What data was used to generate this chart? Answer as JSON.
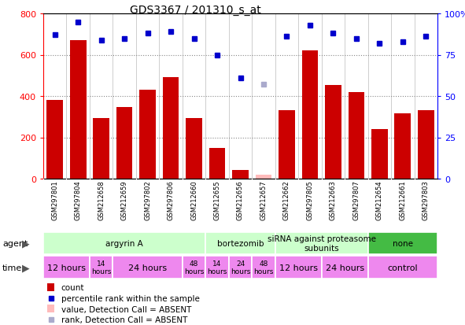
{
  "title": "GDS3367 / 201310_s_at",
  "samples": [
    "GSM297801",
    "GSM297804",
    "GSM212658",
    "GSM212659",
    "GSM297802",
    "GSM297806",
    "GSM212660",
    "GSM212655",
    "GSM212656",
    "GSM212657",
    "GSM212662",
    "GSM297805",
    "GSM212663",
    "GSM297807",
    "GSM212654",
    "GSM212661",
    "GSM297803"
  ],
  "counts": [
    380,
    670,
    295,
    345,
    430,
    490,
    295,
    148,
    42,
    18,
    330,
    620,
    455,
    420,
    240,
    315,
    330
  ],
  "count_absent": [
    false,
    false,
    false,
    false,
    false,
    false,
    false,
    false,
    false,
    true,
    false,
    false,
    false,
    false,
    false,
    false,
    false
  ],
  "percentile_ranks": [
    87,
    95,
    84,
    85,
    88,
    89,
    85,
    75,
    61,
    57,
    86,
    93,
    88,
    85,
    82,
    83,
    86
  ],
  "rank_absent": [
    false,
    false,
    false,
    false,
    false,
    false,
    false,
    false,
    false,
    true,
    false,
    false,
    false,
    false,
    false,
    false,
    false
  ],
  "agents": [
    {
      "label": "argyrin A",
      "start": 0,
      "end": 7,
      "color": "#ccffcc"
    },
    {
      "label": "bortezomib",
      "start": 7,
      "end": 10,
      "color": "#ccffcc"
    },
    {
      "label": "siRNA against proteasome\nsubunits",
      "start": 10,
      "end": 14,
      "color": "#ccffcc"
    },
    {
      "label": "none",
      "start": 14,
      "end": 17,
      "color": "#44cc44"
    }
  ],
  "times": [
    {
      "label": "12 hours",
      "start": 0,
      "end": 2,
      "fontsize": 8
    },
    {
      "label": "14\nhours",
      "start": 2,
      "end": 3,
      "fontsize": 6.5
    },
    {
      "label": "24 hours",
      "start": 3,
      "end": 6,
      "fontsize": 8
    },
    {
      "label": "48\nhours",
      "start": 6,
      "end": 7,
      "fontsize": 6.5
    },
    {
      "label": "14\nhours",
      "start": 7,
      "end": 8,
      "fontsize": 6.5
    },
    {
      "label": "24\nhours",
      "start": 8,
      "end": 9,
      "fontsize": 6.5
    },
    {
      "label": "48\nhours",
      "start": 9,
      "end": 10,
      "fontsize": 6.5
    },
    {
      "label": "12 hours",
      "start": 10,
      "end": 12,
      "fontsize": 8
    },
    {
      "label": "24 hours",
      "start": 12,
      "end": 14,
      "fontsize": 8
    },
    {
      "label": "control",
      "start": 14,
      "end": 17,
      "fontsize": 8
    }
  ],
  "bar_color": "#cc0000",
  "absent_bar_color": "#ffbbbb",
  "dot_color": "#0000cc",
  "absent_dot_color": "#aaaacc",
  "ylim_left": [
    0,
    800
  ],
  "ylim_right": [
    0,
    100
  ],
  "yticks_left": [
    0,
    200,
    400,
    600,
    800
  ],
  "yticks_right": [
    0,
    25,
    50,
    75,
    100
  ],
  "grid_vals": [
    200,
    400,
    600
  ],
  "agent_color_light": "#ccffcc",
  "agent_color_dark": "#44bb44",
  "time_color": "#ee88ee",
  "sample_bg": "#dddddd",
  "background_color": "#ffffff"
}
